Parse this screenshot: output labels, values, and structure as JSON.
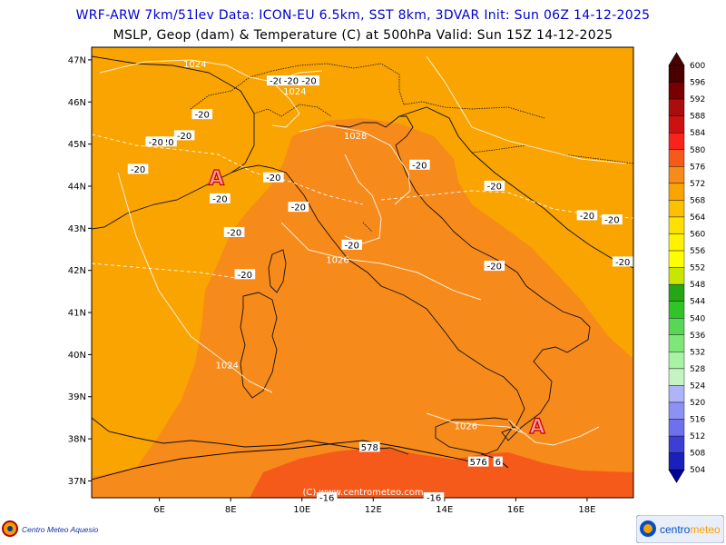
{
  "header": {
    "line1": "WRF-ARW 7km/51lev   Data: ICON-EU 6.5km, SST 8km, 3DVAR   Init: Sun 06Z 14-12-2025",
    "line2": "MSLP, Geop (dam) & Temperature (C) at 500hPa   Valid: Sun 15Z 14-12-2025"
  },
  "map": {
    "lat_labels": [
      "47N",
      "46N",
      "45N",
      "44N",
      "43N",
      "42N",
      "41N",
      "40N",
      "39N",
      "38N",
      "37N"
    ],
    "lon_labels": [
      "6E",
      "8E",
      "10E",
      "12E",
      "14E",
      "16E",
      "18E"
    ],
    "credit": "(C) www.centrometeo.com",
    "high_marker": "A",
    "temp_labels": [
      {
        "text": "-20",
        "lat": 46.5,
        "lon": 9.3
      },
      {
        "text": "-20",
        "lat": 46.5,
        "lon": 9.7
      },
      {
        "text": "-20",
        "lat": 46.5,
        "lon": 10.2
      },
      {
        "text": "-20",
        "lat": 45.7,
        "lon": 7.2
      },
      {
        "text": "-20",
        "lat": 45.2,
        "lon": 6.7
      },
      {
        "text": "-20",
        "lat": 45.05,
        "lon": 6.2
      },
      {
        "text": "-20",
        "lat": 45.05,
        "lon": 5.9
      },
      {
        "text": "-20",
        "lat": 44.4,
        "lon": 5.4
      },
      {
        "text": "-20",
        "lat": 44.2,
        "lon": 9.2
      },
      {
        "text": "-20",
        "lat": 44.5,
        "lon": 13.3
      },
      {
        "text": "-20",
        "lat": 44.0,
        "lon": 15.4
      },
      {
        "text": "-20",
        "lat": 43.7,
        "lon": 7.7
      },
      {
        "text": "-20",
        "lat": 43.5,
        "lon": 9.9
      },
      {
        "text": "-20",
        "lat": 43.3,
        "lon": 18.0
      },
      {
        "text": "-20",
        "lat": 43.2,
        "lon": 18.7
      },
      {
        "text": "-20",
        "lat": 42.9,
        "lon": 8.1
      },
      {
        "text": "-20",
        "lat": 42.6,
        "lon": 11.4
      },
      {
        "text": "-20",
        "lat": 42.1,
        "lon": 15.4
      },
      {
        "text": "-20",
        "lat": 42.2,
        "lon": 19.0
      },
      {
        "text": "-20",
        "lat": 41.9,
        "lon": 8.4
      },
      {
        "text": "-16",
        "lat": 36.6,
        "lon": 10.7
      },
      {
        "text": "-16",
        "lat": 36.6,
        "lon": 13.7
      }
    ],
    "pressure_labels": [
      {
        "text": "1024",
        "lat": 46.9,
        "lon": 7.0
      },
      {
        "text": "1024",
        "lat": 46.25,
        "lon": 9.8
      },
      {
        "text": "1028",
        "lat": 45.2,
        "lon": 11.5
      },
      {
        "text": "1026",
        "lat": 42.25,
        "lon": 11.0
      },
      {
        "text": "1024",
        "lat": 39.75,
        "lon": 7.9
      },
      {
        "text": "1026",
        "lat": 38.3,
        "lon": 14.6
      }
    ],
    "geop_labels": [
      {
        "text": "578",
        "lat": 37.8,
        "lon": 11.9
      },
      {
        "text": "576",
        "lat": 37.45,
        "lon": 14.95
      },
      {
        "text": "6",
        "lat": 37.45,
        "lon": 15.5
      }
    ],
    "highs": [
      {
        "lat": 44.2,
        "lon": 7.6
      },
      {
        "lat": 38.3,
        "lon": 16.6
      }
    ],
    "fill_colors": {
      "c572": "#f9a400",
      "c576": "#f68a1b",
      "c580": "#f65a1a"
    }
  },
  "colorbar": {
    "levels": [
      "600",
      "596",
      "592",
      "588",
      "584",
      "580",
      "576",
      "572",
      "568",
      "564",
      "560",
      "556",
      "552",
      "548",
      "544",
      "540",
      "536",
      "532",
      "528",
      "524",
      "520",
      "516",
      "512",
      "508",
      "504"
    ],
    "colors": [
      "#4b0000",
      "#7a0000",
      "#a90d0d",
      "#cc1111",
      "#f8231c",
      "#f65a1a",
      "#f68a1b",
      "#f9a400",
      "#fbc100",
      "#fce000",
      "#fff200",
      "#ffff00",
      "#c8e600",
      "#26a516",
      "#31c428",
      "#58d655",
      "#7fe679",
      "#a7f3a3",
      "#c6f3c3",
      "#afb4f9",
      "#8e91f4",
      "#6e71ec",
      "#3b3fd6",
      "#1b1fbc",
      "#0000a0"
    ]
  },
  "branding": {
    "left": "Centro Meteo Aquesio",
    "right_a": "centro",
    "right_b": "meteo"
  }
}
